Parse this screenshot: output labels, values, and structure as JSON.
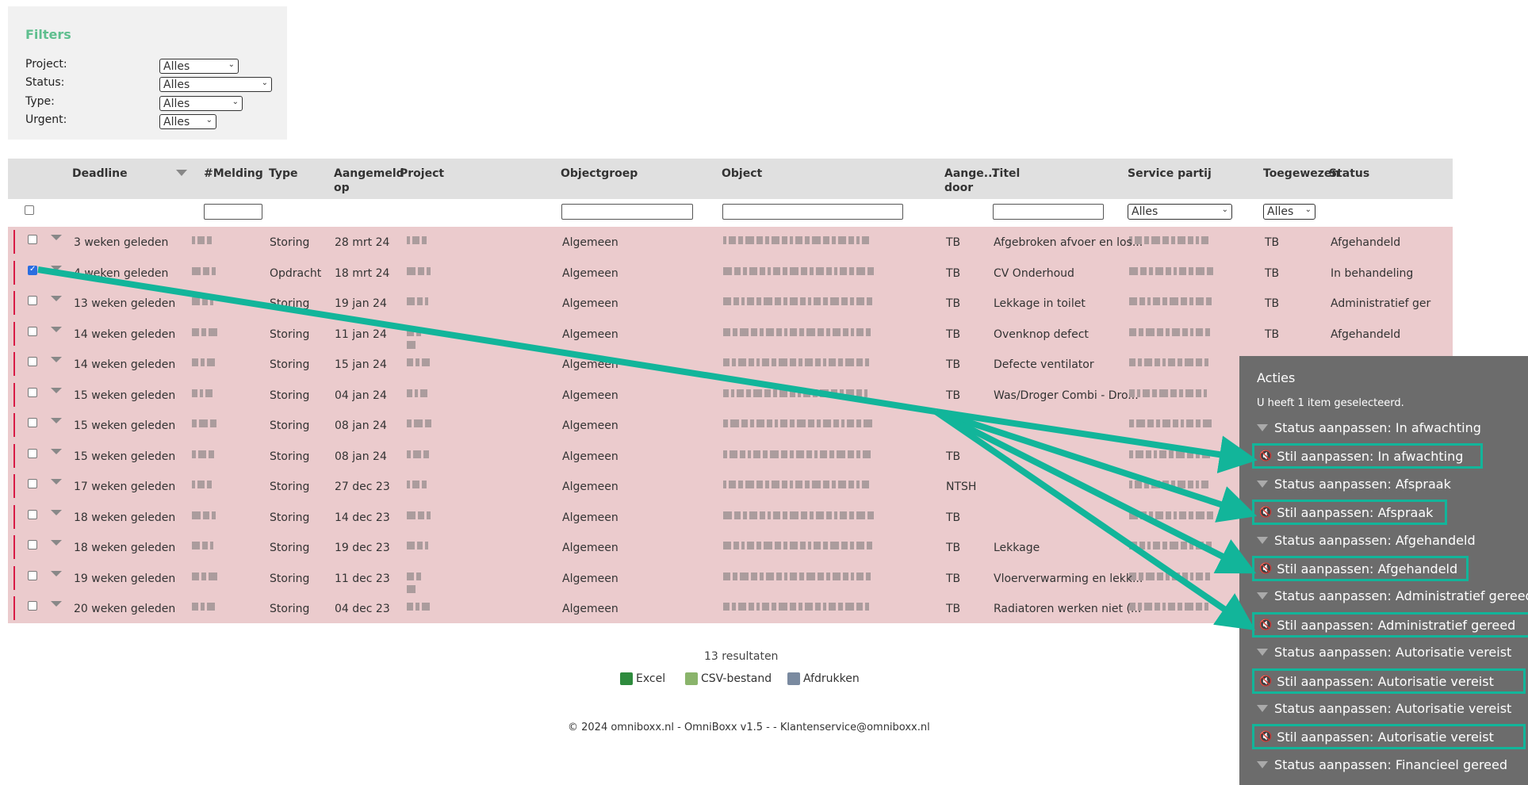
{
  "filters": {
    "title": "Filters",
    "project_label": "Project:",
    "project_value": "Alles",
    "status_label": "Status:",
    "status_value": "Alles",
    "type_label": "Type:",
    "type_value": "Alles",
    "urgent_label": "Urgent:",
    "urgent_value": "Alles"
  },
  "table": {
    "headers": {
      "deadline": "Deadline",
      "melding": "#Melding",
      "type": "Type",
      "aangemeld_op": "Aangemeld op",
      "project": "Project",
      "objectgroep": "Objectgroep",
      "object": "Object",
      "aangemeld_door": "Aange... door",
      "titel": "Titel",
      "service_partij": "Service partij",
      "toegewezen": "Toegewezen",
      "status": "Status"
    },
    "service_partij_filter": "Alles",
    "toegewezen_filter": "Alles",
    "rows": [
      {
        "deadline": "3 weken geleden",
        "type": "Storing",
        "date": "28 mrt 24",
        "group": "Algemeen",
        "by": "TB",
        "titel": "Afgebroken afvoer en los...",
        "toegewezen": "TB",
        "status": "Afgehandeld",
        "checked": false
      },
      {
        "deadline": "4 weken geleden",
        "type": "Opdracht",
        "date": "18 mrt 24",
        "group": "Algemeen",
        "by": "TB",
        "titel": "CV Onderhoud",
        "toegewezen": "TB",
        "status": "In behandeling",
        "checked": true
      },
      {
        "deadline": "13 weken geleden",
        "type": "Storing",
        "date": "19 jan 24",
        "group": "Algemeen",
        "by": "TB",
        "titel": "Lekkage in toilet",
        "toegewezen": "TB",
        "status": "Administratief ger",
        "checked": false
      },
      {
        "deadline": "14 weken geleden",
        "type": "Storing",
        "date": "11 jan 24",
        "group": "Algemeen",
        "by": "TB",
        "titel": "Ovenknop defect",
        "toegewezen": "TB",
        "status": "Afgehandeld",
        "checked": false
      },
      {
        "deadline": "14 weken geleden",
        "type": "Storing",
        "date": "15 jan 24",
        "group": "Algemeen",
        "by": "TB",
        "titel": "Defecte ventilator",
        "toegewezen": "",
        "status": "",
        "checked": false
      },
      {
        "deadline": "15 weken geleden",
        "type": "Storing",
        "date": "04 jan 24",
        "group": "Algemeen",
        "by": "TB",
        "titel": "Was/Droger Combi - Dro...",
        "toegewezen": "",
        "status": "",
        "checked": false
      },
      {
        "deadline": "15 weken geleden",
        "type": "Storing",
        "date": "08 jan 24",
        "group": "Algemeen",
        "by": "",
        "titel": "",
        "toegewezen": "",
        "status": "",
        "checked": false
      },
      {
        "deadline": "15 weken geleden",
        "type": "Storing",
        "date": "08 jan 24",
        "group": "Algemeen",
        "by": "TB",
        "titel": "",
        "toegewezen": "",
        "status": "",
        "checked": false
      },
      {
        "deadline": "17 weken geleden",
        "type": "Storing",
        "date": "27 dec 23",
        "group": "Algemeen",
        "by": "NTSH",
        "titel": "",
        "toegewezen": "",
        "status": "",
        "checked": false
      },
      {
        "deadline": "18 weken geleden",
        "type": "Storing",
        "date": "14 dec 23",
        "group": "Algemeen",
        "by": "TB",
        "titel": "",
        "toegewezen": "",
        "status": "",
        "checked": false
      },
      {
        "deadline": "18 weken geleden",
        "type": "Storing",
        "date": "19 dec 23",
        "group": "Algemeen",
        "by": "TB",
        "titel": "Lekkage",
        "toegewezen": "",
        "status": "",
        "checked": false
      },
      {
        "deadline": "19 weken geleden",
        "type": "Storing",
        "date": "11 dec 23",
        "group": "Algemeen",
        "by": "TB",
        "titel": "Vloerverwarming en lekk...",
        "toegewezen": "",
        "status": "",
        "checked": false
      },
      {
        "deadline": "20 weken geleden",
        "type": "Storing",
        "date": "04 dec 23",
        "group": "Algemeen",
        "by": "TB",
        "titel": "Radiatoren werken niet (...",
        "toegewezen": "",
        "status": "",
        "checked": false
      }
    ]
  },
  "footer": {
    "results": "13 resultaten",
    "excel": "Excel",
    "csv": "CSV-bestand",
    "print": "Afdrukken",
    "copyright": "© 2024 omniboxx.nl - OmniBoxx v1.5 - - Klantenservice@omniboxx.nl"
  },
  "acties": {
    "title": "Acties",
    "selection_text": "U heeft 1 item geselecteerd.",
    "items": [
      {
        "label": "Status aanpassen: In afwachting",
        "kind": "status"
      },
      {
        "label": "Stil aanpassen: In afwachting",
        "kind": "stil"
      },
      {
        "label": "Status aanpassen: Afspraak",
        "kind": "status"
      },
      {
        "label": "Stil aanpassen: Afspraak",
        "kind": "stil"
      },
      {
        "label": "Status aanpassen: Afgehandeld",
        "kind": "status"
      },
      {
        "label": "Stil aanpassen: Afgehandeld",
        "kind": "stil"
      },
      {
        "label": "Status aanpassen: Administratief gereed",
        "kind": "status"
      },
      {
        "label": "Stil aanpassen: Administratief gereed",
        "kind": "stil"
      },
      {
        "label": "Status aanpassen: Autorisatie vereist",
        "kind": "status"
      },
      {
        "label": "Stil aanpassen: Autorisatie vereist",
        "kind": "stil"
      },
      {
        "label": "Status aanpassen: Autorisatie vereist",
        "kind": "status"
      },
      {
        "label": "Stil aanpassen: Autorisatie vereist",
        "kind": "stil"
      },
      {
        "label": "Status aanpassen: Financieel gereed",
        "kind": "status"
      }
    ]
  },
  "colors": {
    "accent": "#12b59a",
    "row_bg": "#ebcbcd",
    "urgent_bar": "#d81b45",
    "panel_bg": "#6c6c6c",
    "filters_title": "#5fbf8f"
  },
  "icons": {
    "excel": "excel-icon",
    "csv": "csv-icon",
    "print": "printer-icon",
    "mute": "mute-icon",
    "expand": "triangle-down-icon"
  }
}
